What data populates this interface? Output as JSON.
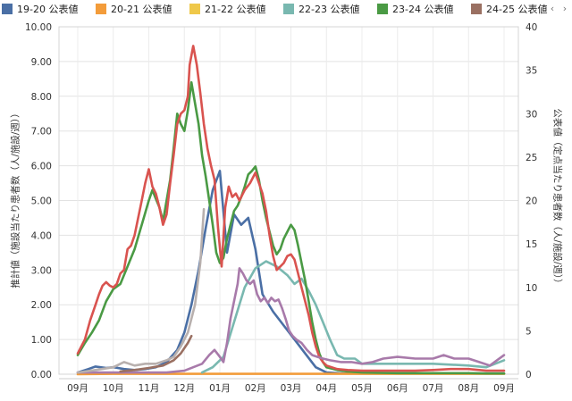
{
  "legend": {
    "items": [
      {
        "label": "19-20 公表値",
        "color": "#4a6fa5"
      },
      {
        "label": "20-21 公表値",
        "color": "#f39c3a"
      },
      {
        "label": "21-22 公表値",
        "color": "#efc84a"
      },
      {
        "label": "22-23 公表値",
        "color": "#79b8b0"
      },
      {
        "label": "23-24 公表値",
        "color": "#4a9a44"
      },
      {
        "label": "24-25 公表値",
        "color": "#9a7062"
      }
    ],
    "prev_icon": "chevron-left-icon",
    "next_icon": "chevron-right-icon",
    "prev_glyph": "‹",
    "next_glyph": "›"
  },
  "axes": {
    "left_title": "推計値（施設当たり患者数（人/施設/週））",
    "right_title": "公表値（定点当たり患者数（人/施設/週））"
  },
  "chart_data": {
    "type": "line",
    "x_categories": [
      "09月",
      "10月",
      "11月",
      "12月",
      "01月",
      "02月",
      "03月",
      "04月",
      "05月",
      "06月",
      "07月",
      "08月",
      "09月"
    ],
    "y_left": {
      "ticks": [
        "0.00",
        "1.00",
        "2.00",
        "3.00",
        "4.00",
        "5.00",
        "6.00",
        "7.00",
        "8.00",
        "9.00",
        "10.00"
      ],
      "range": [
        0,
        10
      ]
    },
    "y_right": {
      "ticks": [
        "0",
        "5",
        "10",
        "15",
        "20",
        "25",
        "30",
        "35",
        "40"
      ],
      "range": [
        0,
        40
      ]
    },
    "grid": true,
    "legend_position": "top",
    "series": [
      {
        "name": "19-20 公表値",
        "color": "#4a6fa5",
        "axis": "left",
        "points": [
          [
            0,
            0.05
          ],
          [
            0.3,
            0.15
          ],
          [
            0.5,
            0.22
          ],
          [
            0.8,
            0.18
          ],
          [
            1,
            0.2
          ],
          [
            1.3,
            0.15
          ],
          [
            1.6,
            0.12
          ],
          [
            1.9,
            0.15
          ],
          [
            2.2,
            0.2
          ],
          [
            2.5,
            0.35
          ],
          [
            2.8,
            0.7
          ],
          [
            3,
            1.2
          ],
          [
            3.2,
            2.0
          ],
          [
            3.4,
            3.0
          ],
          [
            3.6,
            4.2
          ],
          [
            3.8,
            5.3
          ],
          [
            4.0,
            5.85
          ],
          [
            4.2,
            3.5
          ],
          [
            4.4,
            4.6
          ],
          [
            4.6,
            4.3
          ],
          [
            4.8,
            4.5
          ],
          [
            5.0,
            3.6
          ],
          [
            5.2,
            2.3
          ],
          [
            5.5,
            1.8
          ],
          [
            5.8,
            1.4
          ],
          [
            6.1,
            1.0
          ],
          [
            6.4,
            0.6
          ],
          [
            6.7,
            0.2
          ],
          [
            7,
            0.05
          ],
          [
            7.5,
            0.02
          ],
          [
            12,
            0.02
          ]
        ]
      },
      {
        "name": "20-21 公表値",
        "color": "#f39c3a",
        "axis": "left",
        "points": [
          [
            0,
            0.0
          ],
          [
            1,
            0.01
          ],
          [
            2,
            0.01
          ],
          [
            3,
            0.01
          ],
          [
            4,
            0.01
          ],
          [
            5,
            0.01
          ],
          [
            6,
            0.01
          ],
          [
            7,
            0.01
          ],
          [
            8,
            0.01
          ],
          [
            9,
            0.01
          ],
          [
            10,
            0.01
          ],
          [
            11,
            0.01
          ],
          [
            12,
            0.01
          ]
        ]
      },
      {
        "name": "22-23 公表値",
        "color": "#79b8b0",
        "axis": "left",
        "points": [
          [
            3.5,
            0.05
          ],
          [
            3.8,
            0.2
          ],
          [
            4.1,
            0.5
          ],
          [
            4.4,
            1.5
          ],
          [
            4.7,
            2.5
          ],
          [
            5.0,
            3.05
          ],
          [
            5.3,
            3.25
          ],
          [
            5.6,
            3.1
          ],
          [
            5.9,
            2.85
          ],
          [
            6.1,
            2.6
          ],
          [
            6.3,
            2.75
          ],
          [
            6.5,
            2.4
          ],
          [
            6.7,
            2.0
          ],
          [
            6.9,
            1.5
          ],
          [
            7.1,
            1.0
          ],
          [
            7.3,
            0.55
          ],
          [
            7.5,
            0.45
          ],
          [
            7.8,
            0.45
          ],
          [
            8,
            0.3
          ],
          [
            9,
            0.3
          ],
          [
            10,
            0.3
          ],
          [
            11,
            0.25
          ],
          [
            11.5,
            0.2
          ],
          [
            12,
            0.4
          ]
        ]
      },
      {
        "name": "23-24 公表値",
        "color": "#4a9a44",
        "axis": "left",
        "points": [
          [
            0,
            0.55
          ],
          [
            0.2,
            0.9
          ],
          [
            0.4,
            1.2
          ],
          [
            0.6,
            1.55
          ],
          [
            0.8,
            2.1
          ],
          [
            1.0,
            2.45
          ],
          [
            1.2,
            2.6
          ],
          [
            1.4,
            3.1
          ],
          [
            1.6,
            3.6
          ],
          [
            1.8,
            4.3
          ],
          [
            2.0,
            5.0
          ],
          [
            2.1,
            5.3
          ],
          [
            2.2,
            5.05
          ],
          [
            2.3,
            4.8
          ],
          [
            2.4,
            4.4
          ],
          [
            2.5,
            5.0
          ],
          [
            2.6,
            5.6
          ],
          [
            2.7,
            6.5
          ],
          [
            2.8,
            7.5
          ],
          [
            2.9,
            7.2
          ],
          [
            3.0,
            7.0
          ],
          [
            3.1,
            7.6
          ],
          [
            3.2,
            8.4
          ],
          [
            3.3,
            7.8
          ],
          [
            3.4,
            7.2
          ],
          [
            3.5,
            6.3
          ],
          [
            3.6,
            5.7
          ],
          [
            3.7,
            5.0
          ],
          [
            3.8,
            4.3
          ],
          [
            3.9,
            3.5
          ],
          [
            4.0,
            3.2
          ],
          [
            4.1,
            3.35
          ],
          [
            4.2,
            3.9
          ],
          [
            4.3,
            4.3
          ],
          [
            4.4,
            4.7
          ],
          [
            4.5,
            4.85
          ],
          [
            4.6,
            5.1
          ],
          [
            4.7,
            5.4
          ],
          [
            4.8,
            5.75
          ],
          [
            4.9,
            5.85
          ],
          [
            5.0,
            5.98
          ],
          [
            5.1,
            5.6
          ],
          [
            5.2,
            5.0
          ],
          [
            5.3,
            4.5
          ],
          [
            5.4,
            4.1
          ],
          [
            5.5,
            3.7
          ],
          [
            5.6,
            3.45
          ],
          [
            5.7,
            3.6
          ],
          [
            5.8,
            3.9
          ],
          [
            5.9,
            4.1
          ],
          [
            6.0,
            4.3
          ],
          [
            6.1,
            4.15
          ],
          [
            6.2,
            3.7
          ],
          [
            6.3,
            3.2
          ],
          [
            6.4,
            2.7
          ],
          [
            6.5,
            2.1
          ],
          [
            6.6,
            1.5
          ],
          [
            6.7,
            1.0
          ],
          [
            6.8,
            0.6
          ],
          [
            6.9,
            0.35
          ],
          [
            7.0,
            0.2
          ],
          [
            7.3,
            0.12
          ],
          [
            7.6,
            0.08
          ],
          [
            8,
            0.05
          ],
          [
            9,
            0.03
          ],
          [
            10,
            0.03
          ],
          [
            11,
            0.03
          ],
          [
            11.5,
            0.02
          ],
          [
            12,
            0.02
          ]
        ]
      },
      {
        "name": "",
        "color": "#d9534f",
        "axis": "left",
        "points": [
          [
            0,
            0.6
          ],
          [
            0.2,
            1.0
          ],
          [
            0.35,
            1.55
          ],
          [
            0.5,
            2.0
          ],
          [
            0.6,
            2.3
          ],
          [
            0.7,
            2.55
          ],
          [
            0.8,
            2.65
          ],
          [
            0.9,
            2.55
          ],
          [
            1.0,
            2.5
          ],
          [
            1.1,
            2.6
          ],
          [
            1.2,
            2.9
          ],
          [
            1.3,
            3.0
          ],
          [
            1.4,
            3.6
          ],
          [
            1.5,
            3.7
          ],
          [
            1.6,
            4.0
          ],
          [
            1.7,
            4.5
          ],
          [
            1.8,
            5.0
          ],
          [
            1.9,
            5.5
          ],
          [
            2.0,
            5.9
          ],
          [
            2.1,
            5.4
          ],
          [
            2.2,
            5.2
          ],
          [
            2.3,
            4.8
          ],
          [
            2.4,
            4.3
          ],
          [
            2.5,
            4.6
          ],
          [
            2.6,
            5.5
          ],
          [
            2.7,
            6.3
          ],
          [
            2.8,
            7.2
          ],
          [
            2.9,
            7.5
          ],
          [
            3.0,
            7.6
          ],
          [
            3.1,
            8.0
          ],
          [
            3.15,
            8.9
          ],
          [
            3.25,
            9.45
          ],
          [
            3.35,
            8.9
          ],
          [
            3.45,
            8.1
          ],
          [
            3.55,
            7.2
          ],
          [
            3.65,
            6.5
          ],
          [
            3.75,
            6.0
          ],
          [
            3.85,
            5.6
          ],
          [
            3.95,
            4.2
          ],
          [
            4.05,
            3.1
          ],
          [
            4.15,
            4.8
          ],
          [
            4.25,
            5.4
          ],
          [
            4.35,
            5.1
          ],
          [
            4.45,
            5.2
          ],
          [
            4.55,
            5.0
          ],
          [
            4.7,
            5.3
          ],
          [
            4.85,
            5.5
          ],
          [
            5.0,
            5.8
          ],
          [
            5.1,
            5.5
          ],
          [
            5.2,
            5.2
          ],
          [
            5.3,
            4.7
          ],
          [
            5.4,
            4.0
          ],
          [
            5.5,
            3.4
          ],
          [
            5.6,
            3.0
          ],
          [
            5.7,
            3.1
          ],
          [
            5.8,
            3.2
          ],
          [
            5.9,
            3.4
          ],
          [
            6.0,
            3.45
          ],
          [
            6.1,
            3.3
          ],
          [
            6.2,
            2.9
          ],
          [
            6.3,
            2.5
          ],
          [
            6.4,
            2.1
          ],
          [
            6.5,
            1.7
          ],
          [
            6.6,
            1.2
          ],
          [
            6.7,
            0.8
          ],
          [
            6.8,
            0.5
          ],
          [
            6.9,
            0.35
          ],
          [
            7.0,
            0.25
          ],
          [
            7.3,
            0.15
          ],
          [
            7.6,
            0.12
          ],
          [
            8,
            0.1
          ],
          [
            8.5,
            0.1
          ],
          [
            9,
            0.1
          ],
          [
            9.5,
            0.1
          ],
          [
            10,
            0.12
          ],
          [
            10.5,
            0.15
          ],
          [
            11,
            0.15
          ],
          [
            11.5,
            0.1
          ],
          [
            12,
            0.1
          ]
        ]
      },
      {
        "name": "",
        "color": "#a87aaa",
        "axis": "left",
        "points": [
          [
            0,
            0.05
          ],
          [
            1,
            0.05
          ],
          [
            2,
            0.05
          ],
          [
            2.5,
            0.05
          ],
          [
            3,
            0.1
          ],
          [
            3.5,
            0.3
          ],
          [
            3.7,
            0.55
          ],
          [
            3.85,
            0.7
          ],
          [
            4.0,
            0.5
          ],
          [
            4.1,
            0.35
          ],
          [
            4.2,
            0.9
          ],
          [
            4.3,
            1.6
          ],
          [
            4.4,
            2.1
          ],
          [
            4.5,
            2.6
          ],
          [
            4.55,
            3.05
          ],
          [
            4.65,
            2.9
          ],
          [
            4.75,
            2.7
          ],
          [
            4.85,
            2.6
          ],
          [
            4.95,
            2.7
          ],
          [
            5.05,
            2.3
          ],
          [
            5.15,
            2.1
          ],
          [
            5.25,
            2.2
          ],
          [
            5.35,
            2.05
          ],
          [
            5.45,
            2.2
          ],
          [
            5.55,
            2.1
          ],
          [
            5.65,
            2.15
          ],
          [
            5.75,
            1.9
          ],
          [
            5.85,
            1.6
          ],
          [
            5.95,
            1.25
          ],
          [
            6.05,
            1.1
          ],
          [
            6.15,
            1.0
          ],
          [
            6.3,
            0.9
          ],
          [
            6.45,
            0.7
          ],
          [
            6.6,
            0.55
          ],
          [
            6.75,
            0.5
          ],
          [
            6.9,
            0.45
          ],
          [
            7.1,
            0.4
          ],
          [
            7.4,
            0.35
          ],
          [
            7.7,
            0.35
          ],
          [
            8.0,
            0.3
          ],
          [
            8.3,
            0.35
          ],
          [
            8.6,
            0.45
          ],
          [
            9,
            0.5
          ],
          [
            9.5,
            0.45
          ],
          [
            10,
            0.45
          ],
          [
            10.3,
            0.55
          ],
          [
            10.6,
            0.45
          ],
          [
            11,
            0.45
          ],
          [
            11.3,
            0.35
          ],
          [
            11.6,
            0.25
          ],
          [
            11.8,
            0.4
          ],
          [
            12,
            0.55
          ]
        ]
      },
      {
        "name": "",
        "color": "#b8b0ae",
        "axis": "left",
        "points": [
          [
            0,
            0.05
          ],
          [
            0.5,
            0.12
          ],
          [
            1,
            0.2
          ],
          [
            1.3,
            0.35
          ],
          [
            1.6,
            0.25
          ],
          [
            1.9,
            0.3
          ],
          [
            2.2,
            0.3
          ],
          [
            2.5,
            0.4
          ],
          [
            2.7,
            0.5
          ],
          [
            2.9,
            0.8
          ],
          [
            3.1,
            1.2
          ],
          [
            3.3,
            2.0
          ],
          [
            3.45,
            3.2
          ],
          [
            3.55,
            4.75
          ]
        ]
      },
      {
        "name": "24-25 公表値",
        "color": "#9a7062",
        "axis": "left",
        "points": [
          [
            1.2,
            0.08
          ],
          [
            1.6,
            0.12
          ],
          [
            2.0,
            0.18
          ],
          [
            2.4,
            0.25
          ],
          [
            2.7,
            0.4
          ],
          [
            2.9,
            0.6
          ],
          [
            3.1,
            0.9
          ],
          [
            3.2,
            1.1
          ]
        ]
      }
    ]
  }
}
